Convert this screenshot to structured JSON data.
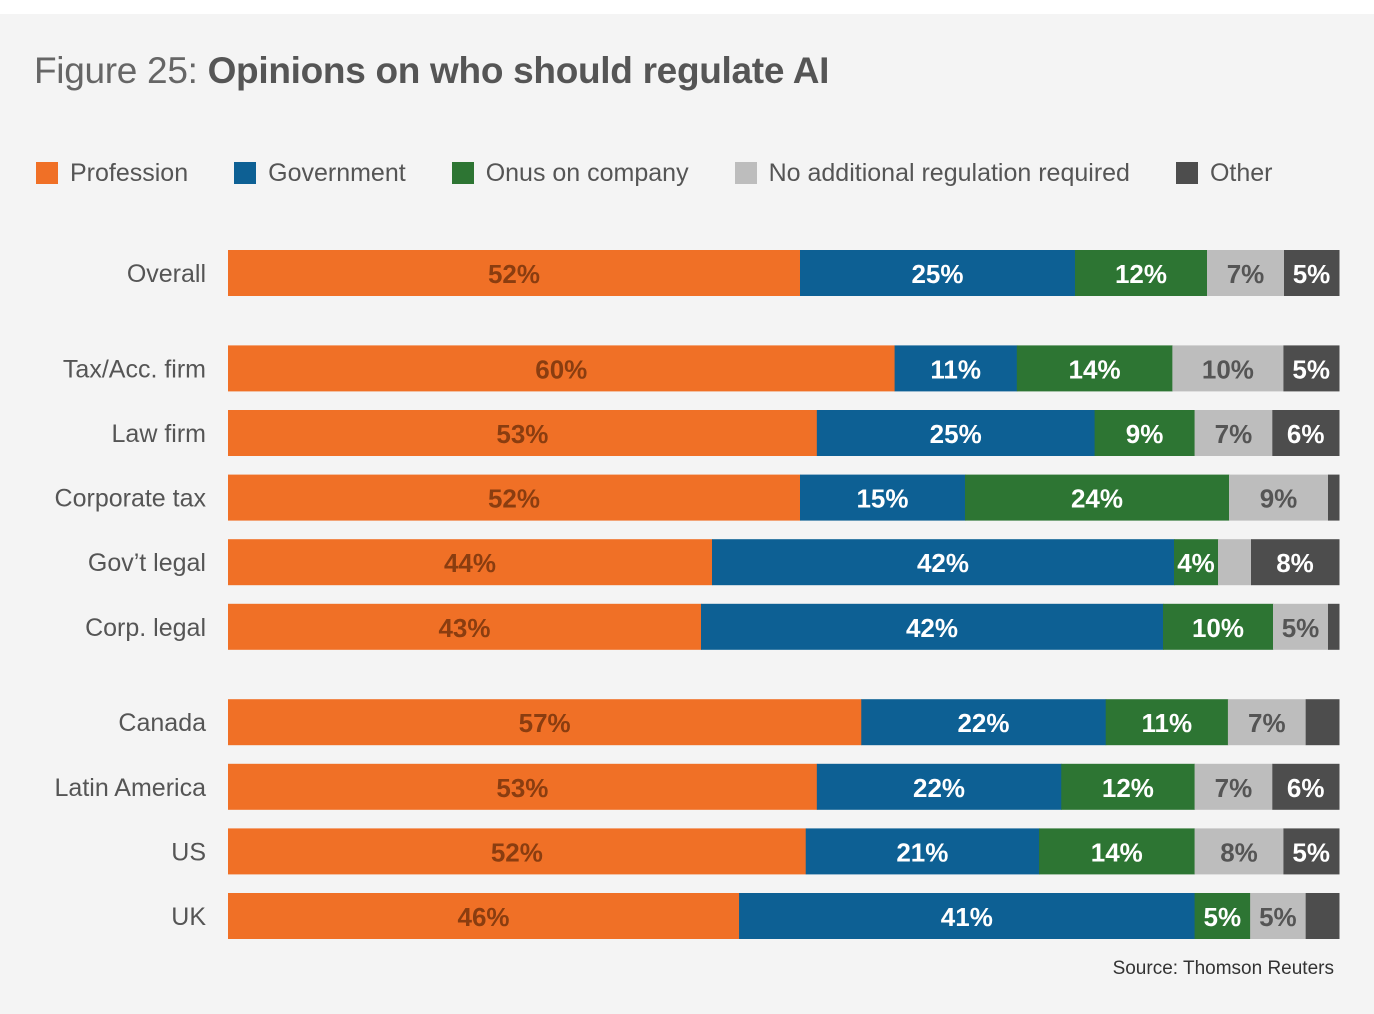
{
  "figure": {
    "prefix": "Figure 25:",
    "title": "Opinions on who should regulate AI",
    "source": "Source: Thomson Reuters"
  },
  "colors": {
    "Profession": "#f07026",
    "Government": "#0d6094",
    "Onus on company": "#2d7533",
    "No additional regulation required": "#bdbdbd",
    "Other": "#4d4d4d"
  },
  "chart_data": {
    "type": "bar",
    "orientation": "horizontal",
    "stacked": true,
    "normalized": true,
    "legend_position": "top",
    "series_names": [
      "Profession",
      "Government",
      "Onus on company",
      "No additional regulation required",
      "Other"
    ],
    "groups": [
      [
        "Overall"
      ],
      [
        "Tax/Acc. firm",
        "Law firm",
        "Corporate tax",
        "Gov’t legal",
        "Corp. legal"
      ],
      [
        "Canada",
        "Latin America",
        "US",
        "UK"
      ]
    ],
    "rows": [
      {
        "label": "Overall",
        "values": [
          52,
          25,
          12,
          7,
          5
        ],
        "labels": [
          "52%",
          "25%",
          "12%",
          "7%",
          "5%"
        ]
      },
      {
        "label": "Tax/Acc. firm",
        "values": [
          60,
          11,
          14,
          10,
          5
        ],
        "labels": [
          "60%",
          "11%",
          "14%",
          "10%",
          "5%"
        ]
      },
      {
        "label": "Law firm",
        "values": [
          53,
          25,
          9,
          7,
          6
        ],
        "labels": [
          "53%",
          "25%",
          "9%",
          "7%",
          "6%"
        ]
      },
      {
        "label": "Corporate tax",
        "values": [
          52,
          15,
          24,
          9,
          1
        ],
        "labels": [
          "52%",
          "15%",
          "24%",
          "9%",
          ""
        ]
      },
      {
        "label": "Gov’t legal",
        "values": [
          44,
          42,
          4,
          3,
          8
        ],
        "labels": [
          "44%",
          "42%",
          "4%",
          "",
          "8%"
        ]
      },
      {
        "label": "Corp. legal",
        "values": [
          43,
          42,
          10,
          5,
          1
        ],
        "labels": [
          "43%",
          "42%",
          "10%",
          "5%",
          ""
        ]
      },
      {
        "label": "Canada",
        "values": [
          57,
          22,
          11,
          7,
          3
        ],
        "labels": [
          "57%",
          "22%",
          "11%",
          "7%",
          ""
        ]
      },
      {
        "label": "Latin America",
        "values": [
          53,
          22,
          12,
          7,
          6
        ],
        "labels": [
          "53%",
          "22%",
          "12%",
          "7%",
          "6%"
        ]
      },
      {
        "label": "US",
        "values": [
          52,
          21,
          14,
          8,
          5
        ],
        "labels": [
          "52%",
          "21%",
          "14%",
          "8%",
          "5%"
        ]
      },
      {
        "label": "UK",
        "values": [
          46,
          41,
          5,
          5,
          3
        ],
        "labels": [
          "46%",
          "41%",
          "5%",
          "5%",
          ""
        ]
      }
    ]
  }
}
